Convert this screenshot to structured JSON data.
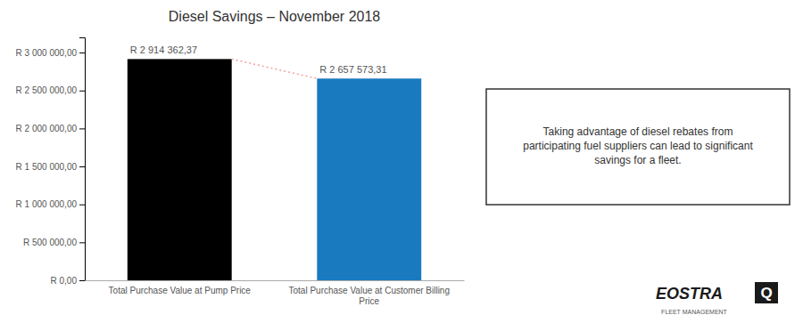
{
  "chart_data": {
    "type": "bar",
    "title": "Diesel Savings – November 2018",
    "categories": [
      "Total Purchase Value at Pump Price",
      "Total Purchase Value at Customer Billing\nPrice"
    ],
    "values": [
      2914362.37,
      2657573.31
    ],
    "value_labels": [
      "R 2 914 362,37",
      "R 2 657 573,31"
    ],
    "data_labels": true,
    "colors": [
      "#000000",
      "#1a7abf"
    ],
    "ylim": [
      0,
      3200000
    ],
    "yticks": [
      {
        "value": 0,
        "label": "R 0,00"
      },
      {
        "value": 500000,
        "label": "R 500 000,00"
      },
      {
        "value": 1000000,
        "label": "R 1 000 000,00"
      },
      {
        "value": 1500000,
        "label": "R 1 500 000,00"
      },
      {
        "value": 2000000,
        "label": "R 2 000 000,00"
      },
      {
        "value": 2500000,
        "label": "R 2 500 000,00"
      },
      {
        "value": 3000000,
        "label": "R 3 000 000,00"
      }
    ],
    "grid": false,
    "annotations": [
      "Taking advantage of diesel rebates from\nparticipating fuel suppliers can lead to significant\nsavings for a fleet.",
      "EOSTRA",
      "Q",
      "FLEET MANAGEMENT"
    ]
  }
}
